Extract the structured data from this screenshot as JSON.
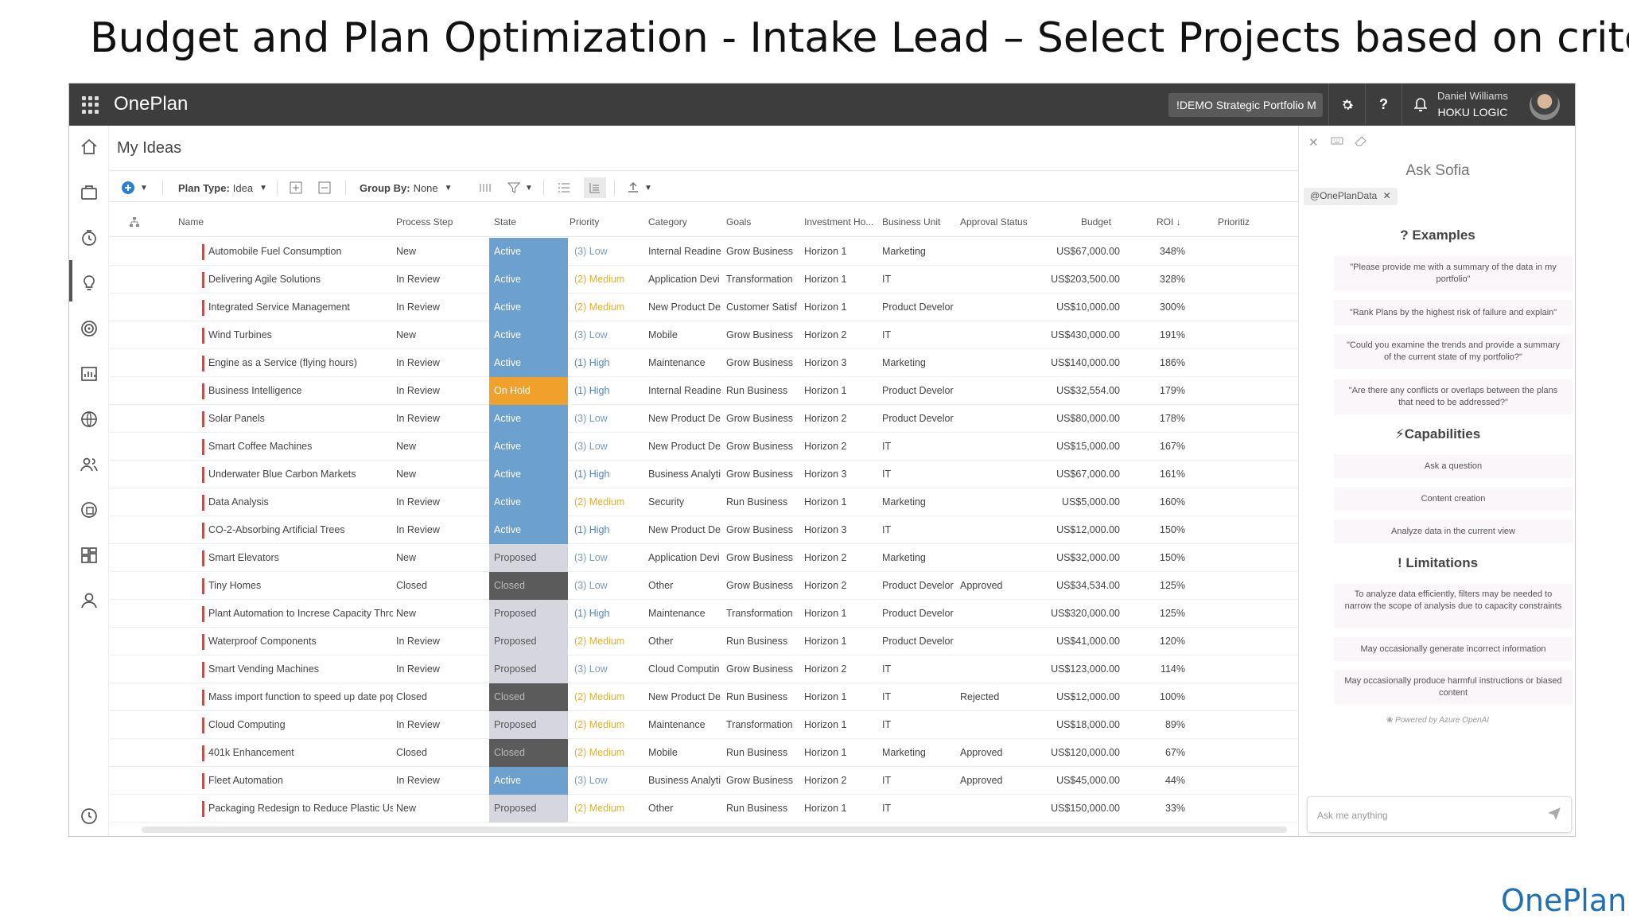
{
  "slide_title": "Budget and Plan Optimization - Intake Lead – Select Projects based on criteria",
  "header": {
    "brand": "OnePlan",
    "portfolio": "!DEMO Strategic Portfolio M",
    "user_name": "Daniel Williams",
    "user_org": "HOKU LOGIC"
  },
  "nav_icons": [
    "home-icon",
    "briefcase-icon",
    "timer-icon",
    "lightbulb-icon",
    "target-icon",
    "chart-icon",
    "globe-icon",
    "people-icon",
    "settings-cycle-icon",
    "dashboard-icon",
    "user-icon",
    "clock-icon"
  ],
  "page": {
    "title": "My Ideas",
    "toolbar": {
      "plan_type_label": "Plan Type:",
      "plan_type_value": "Idea",
      "group_by_label": "Group By:",
      "group_by_value": "None"
    }
  },
  "columns": [
    "Name",
    "Process Step",
    "State",
    "Priority",
    "Category",
    "Goals",
    "Investment Ho...",
    "Business Unit",
    "Approval Status",
    "Budget",
    "ROI",
    "Prioritiz"
  ],
  "state_colors": {
    "Active": "#6ca0cf",
    "On Hold": "#f0a12c",
    "Proposed": "#d6d6de",
    "Closed": "#5b5b5b"
  },
  "priority_colors": {
    "(3) Low": "#7a9bb8",
    "(2) Medium": "#e6b11e",
    "(1) High": "#4f86c6"
  },
  "rows": [
    {
      "name": "Automobile Fuel Consumption",
      "step": "New",
      "state": "Active",
      "priority": "(3) Low",
      "category": "Internal Readine",
      "goals": "Grow Business",
      "horizon": "Horizon 1",
      "unit": "Marketing",
      "approval": "",
      "budget": "US$67,000.00",
      "roi": "348%"
    },
    {
      "name": "Delivering Agile Solutions",
      "step": "In Review",
      "state": "Active",
      "priority": "(2) Medium",
      "category": "Application Devi",
      "goals": "Transformation",
      "horizon": "Horizon 1",
      "unit": "IT",
      "approval": "",
      "budget": "US$203,500.00",
      "roi": "328%"
    },
    {
      "name": "Integrated Service Management",
      "step": "In Review",
      "state": "Active",
      "priority": "(2) Medium",
      "category": "New Product De",
      "goals": "Customer Satisf",
      "horizon": "Horizon 1",
      "unit": "Product Develor",
      "approval": "",
      "budget": "US$10,000.00",
      "roi": "300%"
    },
    {
      "name": "Wind Turbines",
      "step": "New",
      "state": "Active",
      "priority": "(3) Low",
      "category": "Mobile",
      "goals": "Grow Business",
      "horizon": "Horizon 2",
      "unit": "IT",
      "approval": "",
      "budget": "US$430,000.00",
      "roi": "191%"
    },
    {
      "name": "Engine as a Service (flying hours)",
      "step": "In Review",
      "state": "Active",
      "priority": "(1) High",
      "category": "Maintenance",
      "goals": "Grow Business",
      "horizon": "Horizon 3",
      "unit": "Marketing",
      "approval": "",
      "budget": "US$140,000.00",
      "roi": "186%"
    },
    {
      "name": "Business Intelligence",
      "step": "In Review",
      "state": "On Hold",
      "priority": "(1) High",
      "category": "Internal Readine",
      "goals": "Run Business",
      "horizon": "Horizon 1",
      "unit": "Product Develor",
      "approval": "",
      "budget": "US$32,554.00",
      "roi": "179%"
    },
    {
      "name": "Solar Panels",
      "step": "In Review",
      "state": "Active",
      "priority": "(3) Low",
      "category": "New Product De",
      "goals": "Grow Business",
      "horizon": "Horizon 2",
      "unit": "Product Develor",
      "approval": "",
      "budget": "US$80,000.00",
      "roi": "178%"
    },
    {
      "name": "Smart Coffee Machines",
      "step": "New",
      "state": "Active",
      "priority": "(3) Low",
      "category": "New Product De",
      "goals": "Grow Business",
      "horizon": "Horizon 2",
      "unit": "IT",
      "approval": "",
      "budget": "US$15,000.00",
      "roi": "167%"
    },
    {
      "name": "Underwater Blue Carbon Markets",
      "step": "New",
      "state": "Active",
      "priority": "(1) High",
      "category": "Business Analyti",
      "goals": "Grow Business",
      "horizon": "Horizon 3",
      "unit": "IT",
      "approval": "",
      "budget": "US$67,000.00",
      "roi": "161%"
    },
    {
      "name": "Data Analysis",
      "step": "In Review",
      "state": "Active",
      "priority": "(2) Medium",
      "category": "Security",
      "goals": "Run Business",
      "horizon": "Horizon 1",
      "unit": "Marketing",
      "approval": "",
      "budget": "US$5,000.00",
      "roi": "160%"
    },
    {
      "name": "CO-2-Absorbing Artificial Trees",
      "step": "In Review",
      "state": "Active",
      "priority": "(1) High",
      "category": "New Product De",
      "goals": "Grow Business",
      "horizon": "Horizon 3",
      "unit": "IT",
      "approval": "",
      "budget": "US$12,000.00",
      "roi": "150%"
    },
    {
      "name": "Smart Elevators",
      "step": "New",
      "state": "Proposed",
      "priority": "(3) Low",
      "category": "Application Devi",
      "goals": "Grow Business",
      "horizon": "Horizon 2",
      "unit": "Marketing",
      "approval": "",
      "budget": "US$32,000.00",
      "roi": "150%"
    },
    {
      "name": "Tiny Homes",
      "step": "Closed",
      "state": "Closed",
      "priority": "(3) Low",
      "category": "Other",
      "goals": "Grow Business",
      "horizon": "Horizon 2",
      "unit": "Product Develor",
      "approval": "Approved",
      "budget": "US$34,534.00",
      "roi": "125%"
    },
    {
      "name": "Plant Automation to Increse Capacity Throug",
      "step": "New",
      "state": "Proposed",
      "priority": "(1) High",
      "category": "Maintenance",
      "goals": "Transformation",
      "horizon": "Horizon 1",
      "unit": "Product Develor",
      "approval": "",
      "budget": "US$320,000.00",
      "roi": "125%"
    },
    {
      "name": "Waterproof Components",
      "step": "In Review",
      "state": "Proposed",
      "priority": "(2) Medium",
      "category": "Other",
      "goals": "Run Business",
      "horizon": "Horizon 1",
      "unit": "Product Develor",
      "approval": "",
      "budget": "US$41,000.00",
      "roi": "120%"
    },
    {
      "name": "Smart Vending Machines",
      "step": "In Review",
      "state": "Proposed",
      "priority": "(3) Low",
      "category": "Cloud Computin",
      "goals": "Grow Business",
      "horizon": "Horizon 2",
      "unit": "IT",
      "approval": "",
      "budget": "US$123,000.00",
      "roi": "114%"
    },
    {
      "name": "Mass import function to speed up date pop",
      "step": "Closed",
      "state": "Closed",
      "priority": "(2) Medium",
      "category": "New Product De",
      "goals": "Run Business",
      "horizon": "Horizon 1",
      "unit": "IT",
      "approval": "Rejected",
      "budget": "US$12,000.00",
      "roi": "100%"
    },
    {
      "name": "Cloud Computing",
      "step": "In Review",
      "state": "Proposed",
      "priority": "(2) Medium",
      "category": "Maintenance",
      "goals": "Transformation",
      "horizon": "Horizon 1",
      "unit": "IT",
      "approval": "",
      "budget": "US$18,000.00",
      "roi": "89%"
    },
    {
      "name": "401k Enhancement",
      "step": "Closed",
      "state": "Closed",
      "priority": "(2) Medium",
      "category": "Mobile",
      "goals": "Run Business",
      "horizon": "Horizon 1",
      "unit": "Marketing",
      "approval": "Approved",
      "budget": "US$120,000.00",
      "roi": "67%"
    },
    {
      "name": "Fleet Automation",
      "step": "In Review",
      "state": "Active",
      "priority": "(3) Low",
      "category": "Business Analyti",
      "goals": "Grow Business",
      "horizon": "Horizon 2",
      "unit": "IT",
      "approval": "Approved",
      "budget": "US$45,000.00",
      "roi": "44%"
    },
    {
      "name": "Packaging Redesign to Reduce Plastic Use",
      "step": "New",
      "state": "Proposed",
      "priority": "(2) Medium",
      "category": "Other",
      "goals": "Run Business",
      "horizon": "Horizon 1",
      "unit": "IT",
      "approval": "",
      "budget": "US$150,000.00",
      "roi": "33%"
    }
  ],
  "sofia": {
    "title": "Ask Sofia",
    "chip": "@OnePlanData",
    "examples_title": "Examples",
    "examples": [
      "\"Please provide me with a summary of the data in my portfolio\"",
      "\"Rank Plans by the highest risk of failure and explain\"",
      "\"Could you examine the trends and provide a summary of the current state of my portfolio?\"",
      "\"Are there any conflicts or overlaps between the plans that need to be addressed?\""
    ],
    "capabilities_title": "Capabilities",
    "capabilities": [
      "Ask a question",
      "Content creation",
      "Analyze data in the current view"
    ],
    "limitations_title": "Limitations",
    "limitations": [
      "To analyze data efficiently, filters may be needed to narrow the scope of analysis due to capacity constraints",
      "May occasionally generate incorrect information",
      "May occasionally produce harmful instructions or biased content"
    ],
    "powered": "Powered by Azure OpenAI",
    "ask_placeholder": "Ask me anything"
  },
  "footer_logo": "OnePlan"
}
